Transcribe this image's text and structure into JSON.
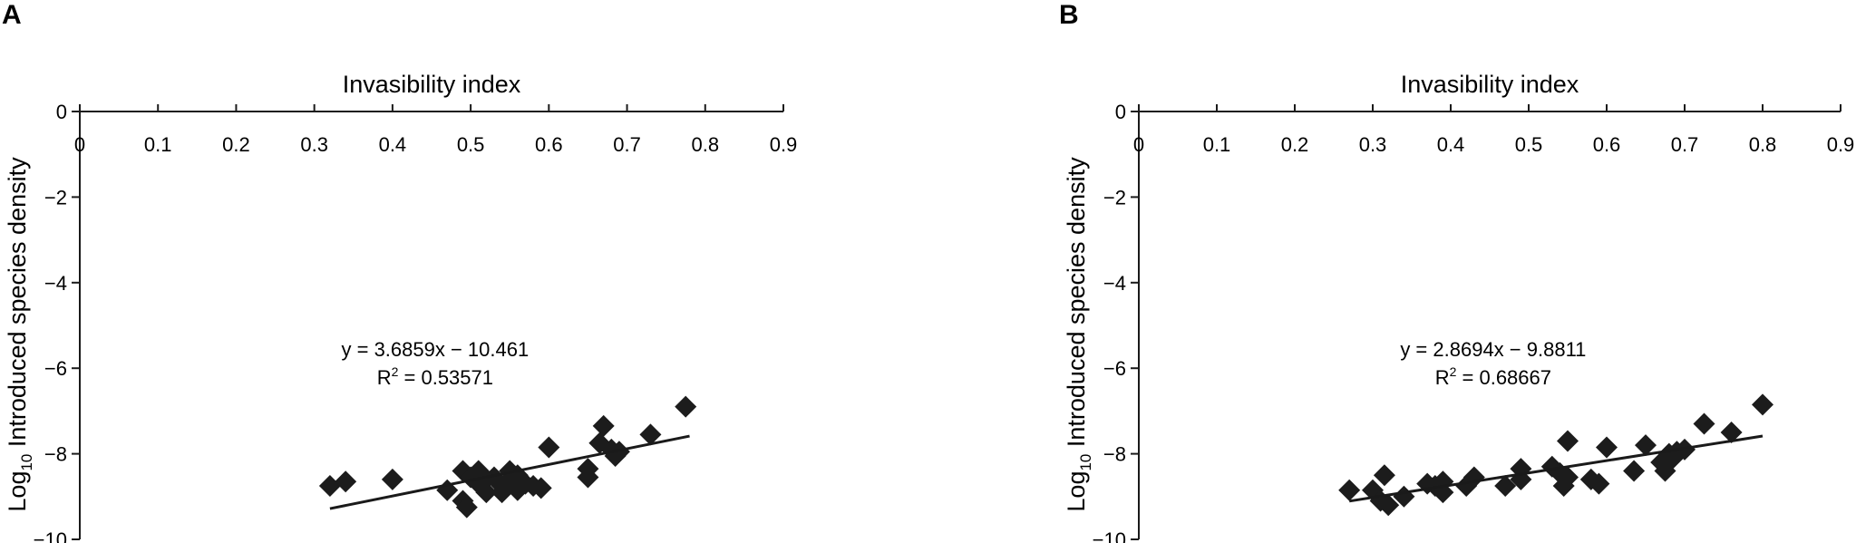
{
  "chart_data": [
    {
      "type": "scatter",
      "panel_label": "A",
      "xlabel": "Invasibility index",
      "ylabel_main": "Log",
      "ylabel_sub": "10",
      "ylabel_rest": " Introduced species density",
      "xlim": [
        0,
        0.9
      ],
      "ylim": [
        -10,
        0
      ],
      "xticks": [
        "0",
        "0.1",
        "0.2",
        "0.3",
        "0.4",
        "0.5",
        "0.6",
        "0.7",
        "0.8",
        "0.9"
      ],
      "yticks": [
        "0",
        "−2",
        "−4",
        "−6",
        "−8",
        "−10"
      ],
      "equation": "y = 3.6859x − 10.461",
      "r2_prefix": "R",
      "r2_sup": "2",
      "r2_suffix": " = 0.53571",
      "trendline": {
        "slope": 3.6859,
        "intercept": -10.461,
        "x_range": [
          0.32,
          0.78
        ]
      },
      "points": [
        {
          "x": 0.32,
          "y": -8.75
        },
        {
          "x": 0.34,
          "y": -8.65
        },
        {
          "x": 0.4,
          "y": -8.6
        },
        {
          "x": 0.47,
          "y": -8.85
        },
        {
          "x": 0.49,
          "y": -8.4
        },
        {
          "x": 0.49,
          "y": -9.1
        },
        {
          "x": 0.495,
          "y": -9.25
        },
        {
          "x": 0.5,
          "y": -8.55
        },
        {
          "x": 0.51,
          "y": -8.4
        },
        {
          "x": 0.51,
          "y": -8.7
        },
        {
          "x": 0.52,
          "y": -8.9
        },
        {
          "x": 0.52,
          "y": -8.6
        },
        {
          "x": 0.53,
          "y": -8.55
        },
        {
          "x": 0.54,
          "y": -8.75
        },
        {
          "x": 0.54,
          "y": -8.9
        },
        {
          "x": 0.55,
          "y": -8.4
        },
        {
          "x": 0.55,
          "y": -8.6
        },
        {
          "x": 0.56,
          "y": -8.5
        },
        {
          "x": 0.56,
          "y": -8.85
        },
        {
          "x": 0.57,
          "y": -8.7
        },
        {
          "x": 0.58,
          "y": -8.75
        },
        {
          "x": 0.59,
          "y": -8.8
        },
        {
          "x": 0.6,
          "y": -7.85
        },
        {
          "x": 0.65,
          "y": -8.55
        },
        {
          "x": 0.65,
          "y": -8.35
        },
        {
          "x": 0.665,
          "y": -7.75
        },
        {
          "x": 0.67,
          "y": -7.35
        },
        {
          "x": 0.68,
          "y": -7.9
        },
        {
          "x": 0.685,
          "y": -8.05
        },
        {
          "x": 0.69,
          "y": -7.95
        },
        {
          "x": 0.73,
          "y": -7.55
        },
        {
          "x": 0.775,
          "y": -6.9
        }
      ]
    },
    {
      "type": "scatter",
      "panel_label": "B",
      "xlabel": "Invasibility index",
      "ylabel_main": "Log",
      "ylabel_sub": "10",
      "ylabel_rest": " Introduced species density",
      "xlim": [
        0,
        0.9
      ],
      "ylim": [
        -10,
        0
      ],
      "xticks": [
        "0",
        "0.1",
        "0.2",
        "0.3",
        "0.4",
        "0.5",
        "0.6",
        "0.7",
        "0.8",
        "0.9"
      ],
      "yticks": [
        "0",
        "−2",
        "−4",
        "−6",
        "−8",
        "−10"
      ],
      "equation": "y = 2.8694x − 9.8811",
      "r2_prefix": "R",
      "r2_sup": "2",
      "r2_suffix": " = 0.68667",
      "trendline": {
        "slope": 2.8694,
        "intercept": -9.8811,
        "x_range": [
          0.27,
          0.8
        ]
      },
      "points": [
        {
          "x": 0.27,
          "y": -8.85
        },
        {
          "x": 0.3,
          "y": -8.85
        },
        {
          "x": 0.31,
          "y": -9.1
        },
        {
          "x": 0.315,
          "y": -8.5
        },
        {
          "x": 0.32,
          "y": -9.2
        },
        {
          "x": 0.34,
          "y": -9.0
        },
        {
          "x": 0.37,
          "y": -8.7
        },
        {
          "x": 0.38,
          "y": -8.75
        },
        {
          "x": 0.39,
          "y": -8.9
        },
        {
          "x": 0.39,
          "y": -8.65
        },
        {
          "x": 0.42,
          "y": -8.75
        },
        {
          "x": 0.43,
          "y": -8.55
        },
        {
          "x": 0.47,
          "y": -8.75
        },
        {
          "x": 0.49,
          "y": -8.6
        },
        {
          "x": 0.49,
          "y": -8.35
        },
        {
          "x": 0.53,
          "y": -8.3
        },
        {
          "x": 0.54,
          "y": -8.45
        },
        {
          "x": 0.545,
          "y": -8.75
        },
        {
          "x": 0.55,
          "y": -7.7
        },
        {
          "x": 0.55,
          "y": -8.55
        },
        {
          "x": 0.58,
          "y": -8.6
        },
        {
          "x": 0.59,
          "y": -8.7
        },
        {
          "x": 0.6,
          "y": -7.85
        },
        {
          "x": 0.635,
          "y": -8.4
        },
        {
          "x": 0.65,
          "y": -7.8
        },
        {
          "x": 0.67,
          "y": -8.2
        },
        {
          "x": 0.675,
          "y": -8.4
        },
        {
          "x": 0.68,
          "y": -8.0
        },
        {
          "x": 0.685,
          "y": -8.1
        },
        {
          "x": 0.69,
          "y": -7.95
        },
        {
          "x": 0.7,
          "y": -7.9
        },
        {
          "x": 0.725,
          "y": -7.3
        },
        {
          "x": 0.76,
          "y": -7.5
        },
        {
          "x": 0.8,
          "y": -6.85
        }
      ]
    }
  ]
}
